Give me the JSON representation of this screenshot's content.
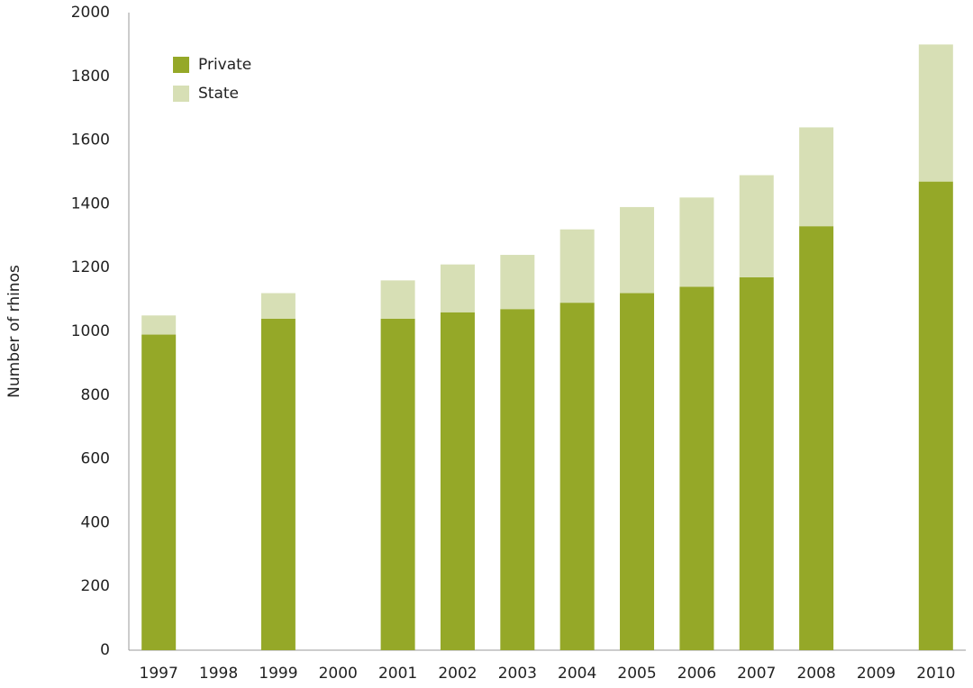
{
  "chart_data": {
    "type": "stacked_bar",
    "y_axis_label": "Number of rhinos",
    "categories": [
      "1997",
      "1998",
      "1999",
      "2000",
      "2001",
      "2002",
      "2003",
      "2004",
      "2005",
      "2006",
      "2007",
      "2008",
      "2009",
      "2010"
    ],
    "series": [
      {
        "name": "Private",
        "color": "#95a828",
        "values": [
          990,
          null,
          1040,
          null,
          1040,
          1060,
          1070,
          1090,
          1120,
          1140,
          1170,
          1330,
          null,
          1470
        ]
      },
      {
        "name": "State",
        "color": "#d7dfb5",
        "values": [
          60,
          null,
          80,
          null,
          120,
          150,
          170,
          230,
          270,
          280,
          320,
          310,
          null,
          430
        ]
      }
    ],
    "ylim": [
      0,
      2000
    ],
    "yticks": [
      0,
      200,
      400,
      600,
      800,
      1000,
      1200,
      1400,
      1600,
      1800,
      2000
    ],
    "grid": false,
    "legend": "top-left"
  }
}
